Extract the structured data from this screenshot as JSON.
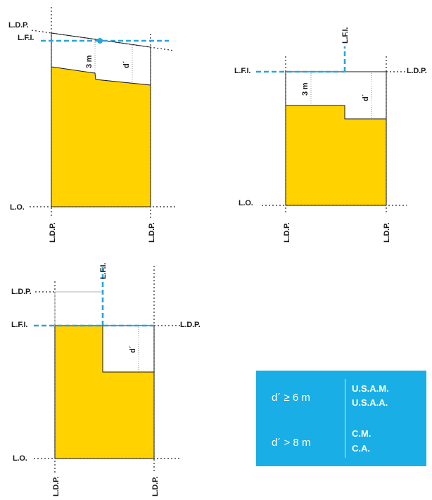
{
  "labels": {
    "ldp": "L.D.P.",
    "lfi": "L.F.I.",
    "lo": "L.O.",
    "three_m": "3 m",
    "d_prime": "d´"
  },
  "legend": {
    "rows": [
      {
        "condition": "d´ ≥ 6 m",
        "classes": [
          "U.S.A.M.",
          "U.S.A.A."
        ]
      },
      {
        "condition": "d´ > 8 m",
        "classes": [
          "C.M.",
          "C.A."
        ]
      }
    ]
  },
  "colors": {
    "building_fill": "#ffd200",
    "lfi_line": "#2aa3dc",
    "legend_bg": "#1aaee6"
  }
}
